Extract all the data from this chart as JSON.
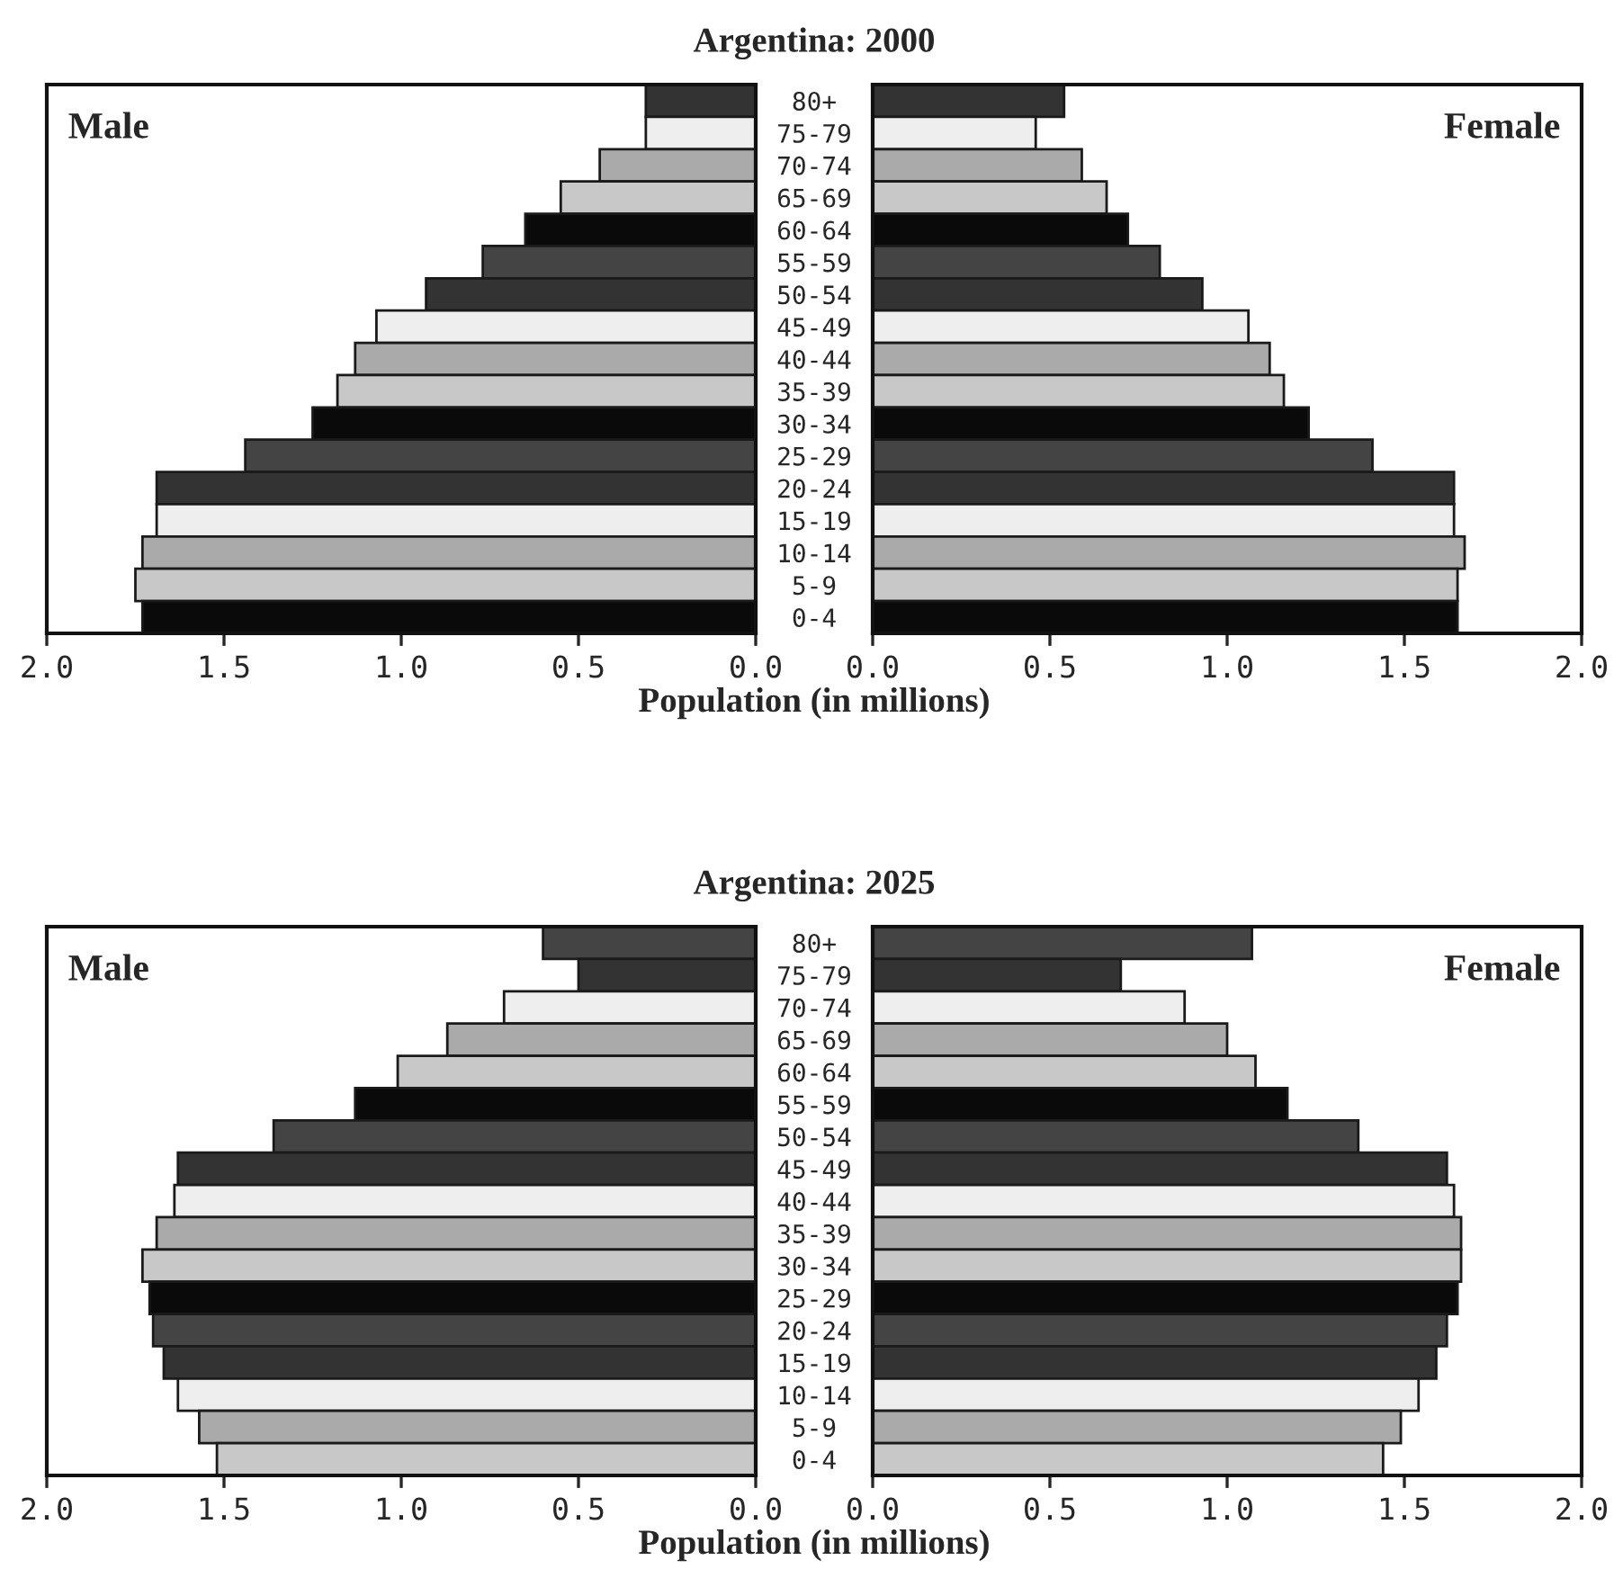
{
  "chart_data": [
    {
      "type": "bar",
      "orientation": "horizontal",
      "title": "Argentina: 2000",
      "xlabel": "Population (in millions)",
      "annotations": [
        "Male"
      ],
      "categories": [
        "80+",
        "75-79",
        "70-74",
        "65-69",
        "60-64",
        "55-59",
        "50-54",
        "45-49",
        "40-44",
        "35-39",
        "30-34",
        "25-29",
        "20-24",
        "15-19",
        "10-14",
        "5-9",
        "0-4"
      ],
      "values": [
        0.31,
        0.31,
        0.44,
        0.55,
        0.65,
        0.77,
        0.93,
        1.07,
        1.13,
        1.18,
        1.25,
        1.44,
        1.69,
        1.69,
        1.73,
        1.75,
        1.73
      ],
      "colors": [
        "#333333",
        "#eeeeee",
        "#aaaaaa",
        "#c8c8c8",
        "#0a0a0a",
        "#444444",
        "#333333",
        "#eeeeee",
        "#aaaaaa",
        "#c8c8c8",
        "#0a0a0a",
        "#444444",
        "#333333",
        "#eeeeee",
        "#aaaaaa",
        "#c8c8c8",
        "#0a0a0a"
      ],
      "xlim": [
        2.0,
        0.0
      ],
      "xticks": [
        {
          "value": 2,
          "label": "2.0"
        },
        {
          "value": 1.5,
          "label": "1.5"
        },
        {
          "value": 1,
          "label": "1.0"
        },
        {
          "value": 0.5,
          "label": "0.5"
        },
        {
          "value": 0,
          "label": "0.0"
        }
      ]
    },
    {
      "type": "bar",
      "orientation": "horizontal",
      "annotations": [
        "Female"
      ],
      "categories": [
        null,
        null,
        null,
        null,
        null,
        null,
        null,
        null,
        null,
        null,
        null,
        null,
        null,
        null,
        null,
        null,
        null
      ],
      "values": [
        0.54,
        0.46,
        0.59,
        0.66,
        0.72,
        0.81,
        0.93,
        1.06,
        1.12,
        1.16,
        1.23,
        1.41,
        1.64,
        1.64,
        1.67,
        1.65,
        1.65
      ],
      "colors": [
        "#333333",
        "#eeeeee",
        "#aaaaaa",
        "#c8c8c8",
        "#0a0a0a",
        "#444444",
        "#333333",
        "#eeeeee",
        "#aaaaaa",
        "#c8c8c8",
        "#0a0a0a",
        "#444444",
        "#333333",
        "#eeeeee",
        "#aaaaaa",
        "#c8c8c8",
        "#0a0a0a"
      ],
      "xlim": [
        0.0,
        2.0
      ],
      "xticks": [
        {
          "value": 0,
          "label": "0.0"
        },
        {
          "value": 0.5,
          "label": "0.5"
        },
        {
          "value": 1,
          "label": "1.0"
        },
        {
          "value": 1.5,
          "label": "1.5"
        },
        {
          "value": 2,
          "label": "2.0"
        }
      ]
    },
    {
      "type": "bar",
      "orientation": "horizontal",
      "title": "Argentina: 2025",
      "xlabel": "Population (in millions)",
      "annotations": [
        "Male"
      ],
      "categories": [
        "80+",
        "75-79",
        "70-74",
        "65-69",
        "60-64",
        "55-59",
        "50-54",
        "45-49",
        "40-44",
        "35-39",
        "30-34",
        "25-29",
        "20-24",
        "15-19",
        "10-14",
        "5-9",
        "0-4"
      ],
      "values": [
        0.6,
        0.5,
        0.71,
        0.87,
        1.01,
        1.13,
        1.36,
        1.63,
        1.64,
        1.69,
        1.73,
        1.71,
        1.7,
        1.67,
        1.63,
        1.57,
        1.52
      ],
      "colors": [
        "#444444",
        "#333333",
        "#eeeeee",
        "#aaaaaa",
        "#c8c8c8",
        "#0a0a0a",
        "#444444",
        "#333333",
        "#eeeeee",
        "#aaaaaa",
        "#c8c8c8",
        "#0a0a0a",
        "#444444",
        "#333333",
        "#eeeeee",
        "#aaaaaa",
        "#c8c8c8"
      ],
      "xlim": [
        2.0,
        0.0
      ],
      "xticks": [
        {
          "value": 2,
          "label": "2.0"
        },
        {
          "value": 1.5,
          "label": "1.5"
        },
        {
          "value": 1,
          "label": "1.0"
        },
        {
          "value": 0.5,
          "label": "0.5"
        },
        {
          "value": 0,
          "label": "0.0"
        }
      ]
    },
    {
      "type": "bar",
      "orientation": "horizontal",
      "annotations": [
        "Female"
      ],
      "categories": [
        null,
        null,
        null,
        null,
        null,
        null,
        null,
        null,
        null,
        null,
        null,
        null,
        null,
        null,
        null,
        null,
        null
      ],
      "values": [
        1.07,
        0.7,
        0.88,
        1.0,
        1.08,
        1.17,
        1.37,
        1.62,
        1.64,
        1.66,
        1.66,
        1.65,
        1.62,
        1.59,
        1.54,
        1.49,
        1.44
      ],
      "colors": [
        "#444444",
        "#333333",
        "#eeeeee",
        "#aaaaaa",
        "#c8c8c8",
        "#0a0a0a",
        "#444444",
        "#333333",
        "#eeeeee",
        "#aaaaaa",
        "#c8c8c8",
        "#0a0a0a",
        "#444444",
        "#333333",
        "#eeeeee",
        "#aaaaaa",
        "#c8c8c8"
      ],
      "xlim": [
        0.0,
        2.0
      ],
      "xticks": [
        {
          "value": 0,
          "label": "0.0"
        },
        {
          "value": 0.5,
          "label": "0.5"
        },
        {
          "value": 1,
          "label": "1.0"
        },
        {
          "value": 1.5,
          "label": "1.5"
        },
        {
          "value": 2,
          "label": "2.0"
        }
      ]
    }
  ]
}
